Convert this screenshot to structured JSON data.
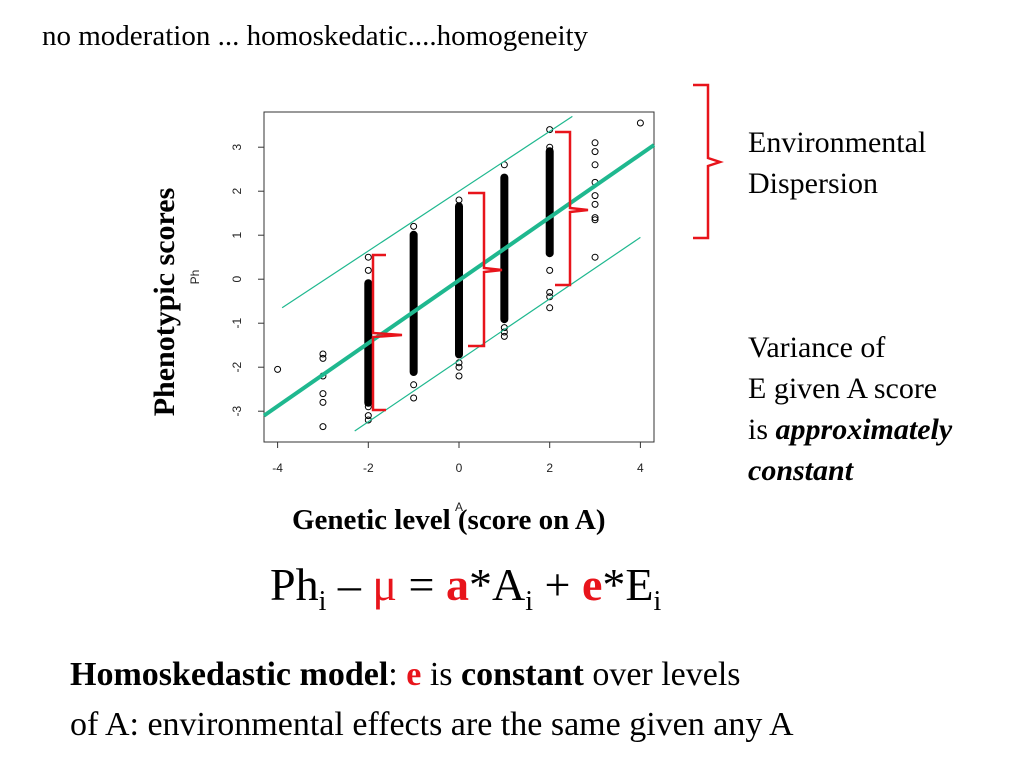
{
  "slide": {
    "title": "no moderation ... homoskedatic....homogeneity",
    "y_label": "Phenotypic scores",
    "x_label": "Genetic level (score on A)",
    "note_env": [
      "Environmental",
      "Dispersion"
    ],
    "note_var_line1": "Variance of",
    "note_var_line2": "E given A score",
    "note_var_line3_prefix": "is ",
    "note_var_line3_emph": "approximately",
    "note_var_line4_emph": "constant",
    "equation": {
      "ph": "Ph",
      "sub_i": "i",
      "minus": " – ",
      "mu": "μ",
      "equals": " = ",
      "a": "a",
      "times_a": "*A",
      "plus": " + ",
      "e": "e",
      "times_e": "*E"
    },
    "bottom": {
      "bold1": "Homoskedastic model",
      "colon": ": ",
      "e": "e",
      "is": " is ",
      "bold2": "constant",
      "rest1": " over levels",
      "line2": "of A: environmental effects are the same given any A"
    },
    "colors": {
      "accent_red": "#e8141b",
      "line_green": "#1fb88f"
    }
  },
  "chart_data": {
    "type": "scatter",
    "xlabel": "A",
    "ylabel": "Ph",
    "xlim": [
      -4.3,
      4.3
    ],
    "ylim": [
      -3.7,
      3.8
    ],
    "x_ticks": [
      -4,
      -2,
      0,
      2,
      4
    ],
    "y_ticks": [
      -3,
      -2,
      -1,
      0,
      1,
      2,
      3
    ],
    "x": [
      -4,
      -3,
      -3,
      -3,
      -3,
      -3,
      -3,
      -2,
      -2,
      -2,
      -2,
      -2,
      -2,
      -2,
      -2,
      -2,
      -1,
      -1,
      -1,
      -1,
      -1,
      -1,
      -1,
      0,
      0,
      0,
      0,
      0,
      0,
      0,
      0,
      1,
      1,
      1,
      1,
      1,
      1,
      1,
      2,
      2,
      2,
      2,
      2,
      2,
      2,
      2,
      3,
      3,
      3,
      3,
      3,
      3,
      3,
      3,
      3,
      4
    ],
    "y": [
      -2.05,
      -1.7,
      -1.8,
      -2.2,
      -2.6,
      -2.8,
      -3.35,
      0.5,
      0.2,
      -0.6,
      -1.2,
      -2.0,
      -2.6,
      -2.9,
      -3.1,
      -3.2,
      1.2,
      0.9,
      -0.2,
      -1.0,
      -1.7,
      -2.4,
      -2.7,
      1.8,
      1.4,
      0.3,
      -0.8,
      -1.6,
      -1.9,
      -2.0,
      -2.2,
      2.6,
      2.3,
      1.0,
      -0.5,
      -1.1,
      -1.2,
      -1.3,
      3.4,
      3.0,
      2.5,
      1.2,
      0.2,
      -0.3,
      -0.4,
      -0.65,
      3.1,
      2.9,
      2.6,
      2.2,
      1.9,
      1.7,
      1.4,
      1.35,
      0.5,
      3.55
    ],
    "dense_bands": [
      {
        "x": -2,
        "y_min": -2.9,
        "y_max": 0.0
      },
      {
        "x": -1,
        "y_min": -2.2,
        "y_max": 1.1
      },
      {
        "x": 0,
        "y_min": -1.8,
        "y_max": 1.75
      },
      {
        "x": 1,
        "y_min": -1.0,
        "y_max": 2.4
      },
      {
        "x": 2,
        "y_min": 0.5,
        "y_max": 3.0
      }
    ],
    "regression_line": {
      "x": [
        -4.3,
        4.3
      ],
      "y": [
        -3.1,
        3.05
      ]
    },
    "band_lines": [
      {
        "x": [
          -3.9,
          2.5
        ],
        "y": [
          -0.65,
          3.7
        ]
      },
      {
        "x": [
          -2.3,
          4.0
        ],
        "y": [
          -3.45,
          0.95
        ]
      }
    ],
    "grid": false,
    "legend": "none"
  }
}
